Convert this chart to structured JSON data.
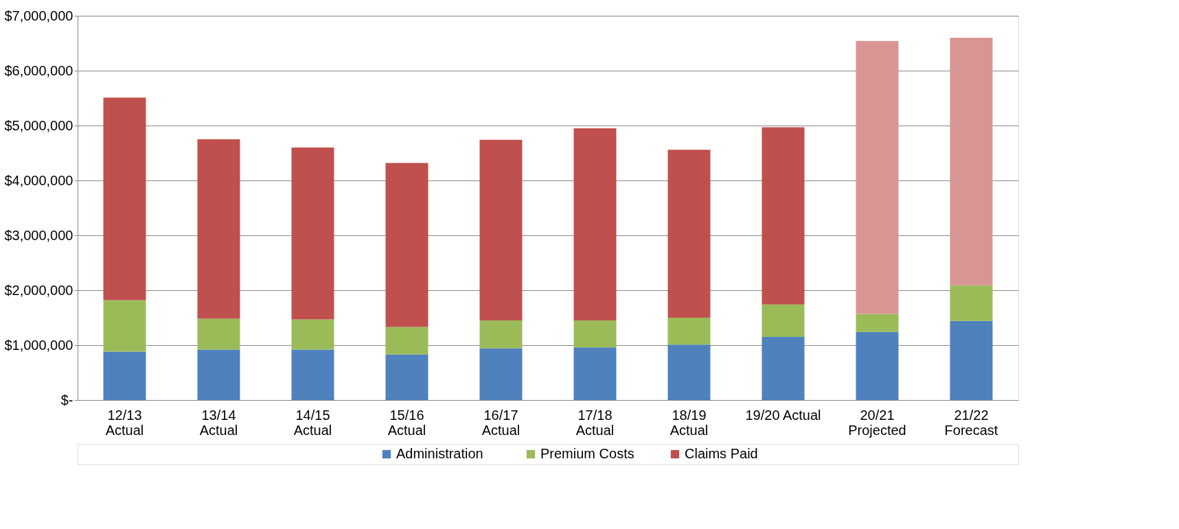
{
  "chart_data": {
    "type": "bar",
    "stacked": true,
    "categories": [
      "12/13\nActual",
      "13/14\nActual",
      "14/15\nActual",
      "15/16\nActual",
      "16/17\nActual",
      "17/18\nActual",
      "18/19\nActual",
      "19/20  Actual",
      "20/21\nProjected",
      "21/22\nForecast"
    ],
    "series": [
      {
        "name": "Administration",
        "color": "#4f81bd",
        "values": [
          880000,
          920000,
          920000,
          830000,
          940000,
          960000,
          1010000,
          1150000,
          1240000,
          1440000
        ]
      },
      {
        "name": "Premium Costs",
        "color": "#9bbb59",
        "values": [
          940000,
          560000,
          550000,
          500000,
          510000,
          490000,
          490000,
          590000,
          330000,
          650000
        ]
      },
      {
        "name": "Claims Paid",
        "color": "#c0504d",
        "values": [
          3690000,
          3270000,
          3130000,
          2990000,
          3290000,
          3500000,
          3060000,
          3230000,
          4970000,
          4510000
        ],
        "colors": [
          "#c0504d",
          "#c0504d",
          "#c0504d",
          "#c0504d",
          "#c0504d",
          "#c0504d",
          "#c0504d",
          "#c0504d",
          "#d99594",
          "#d99594"
        ]
      }
    ],
    "ylim": [
      0,
      7000000
    ],
    "yticks": [
      {
        "value": 0,
        "label": "$-"
      },
      {
        "value": 1000000,
        "label": "$1,000,000"
      },
      {
        "value": 2000000,
        "label": "$2,000,000"
      },
      {
        "value": 3000000,
        "label": "$3,000,000"
      },
      {
        "value": 4000000,
        "label": "$4,000,000"
      },
      {
        "value": 5000000,
        "label": "$5,000,000"
      },
      {
        "value": 6000000,
        "label": "$6,000,000"
      },
      {
        "value": 7000000,
        "label": "$7,000,000"
      }
    ],
    "grid": "y",
    "legend": "bottom"
  }
}
